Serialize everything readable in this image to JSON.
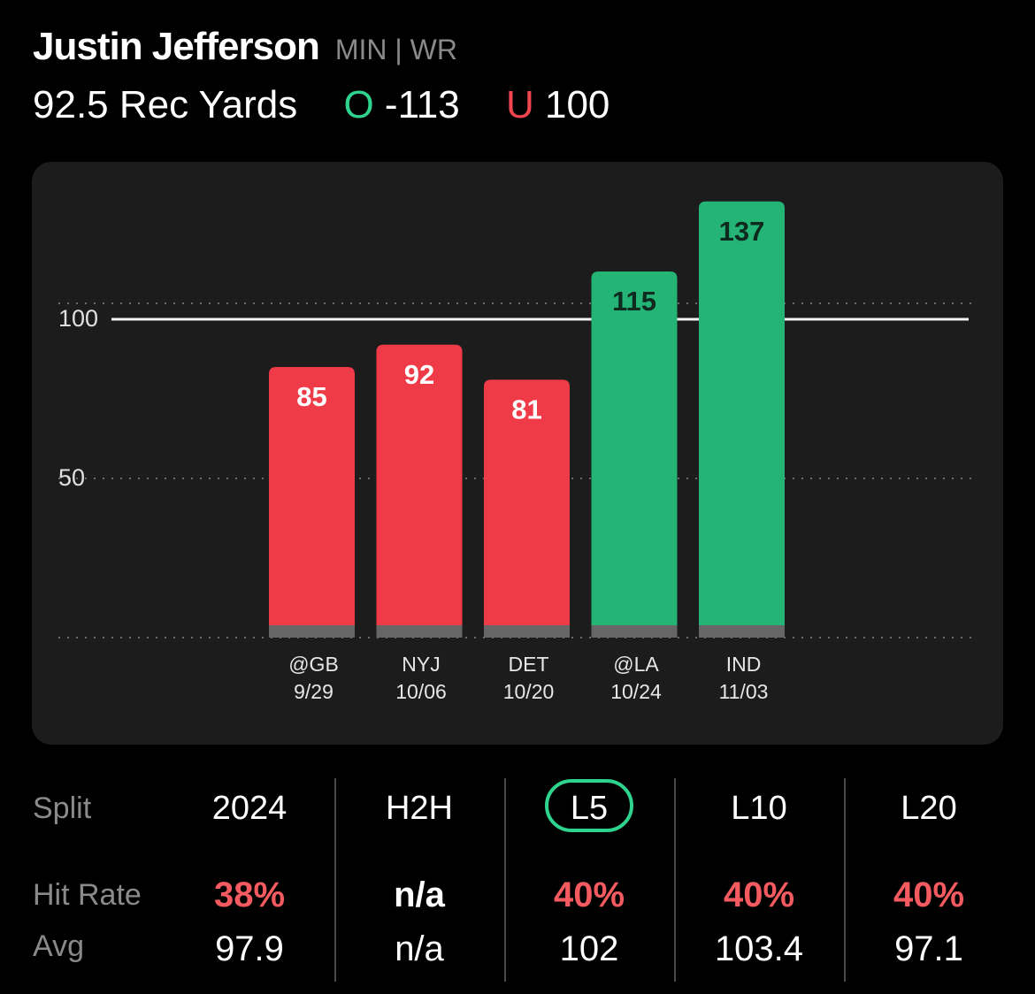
{
  "player": {
    "name": "Justin Jefferson",
    "team_pos": "MIN | WR"
  },
  "prop": {
    "line_label": "92.5 Rec Yards",
    "over_mark": "O",
    "over_odds": "-113",
    "under_mark": "U",
    "under_odds": "100"
  },
  "colors": {
    "over": "#2ed48d",
    "under": "#f0444f",
    "bar_red": "#ef3b47",
    "bar_green": "#24b576",
    "card": "#1c1c1c"
  },
  "chart_data": {
    "type": "bar",
    "categories": [
      "@GB",
      "NYJ",
      "DET",
      "@LA",
      "IND"
    ],
    "dates": [
      "9/29",
      "10/06",
      "10/20",
      "10/24",
      "11/03"
    ],
    "values": [
      85,
      92,
      81,
      115,
      137
    ],
    "threshold": 100,
    "y_ticks": [
      50,
      100
    ],
    "ylim": [
      0,
      150
    ],
    "grid": true
  },
  "splits": {
    "labels": {
      "split": "Split",
      "hit_rate": "Hit Rate",
      "avg": "Avg"
    },
    "columns": [
      {
        "tab": "2024",
        "hit": "38%",
        "avg": "97.9",
        "hit_color": "red",
        "selected": false
      },
      {
        "tab": "H2H",
        "hit": "n/a",
        "avg": "n/a",
        "hit_color": "white",
        "selected": false
      },
      {
        "tab": "L5",
        "hit": "40%",
        "avg": "102",
        "hit_color": "red",
        "selected": true
      },
      {
        "tab": "L10",
        "hit": "40%",
        "avg": "103.4",
        "hit_color": "red",
        "selected": false
      },
      {
        "tab": "L20",
        "hit": "40%",
        "avg": "97.1",
        "hit_color": "red",
        "selected": false
      }
    ]
  }
}
